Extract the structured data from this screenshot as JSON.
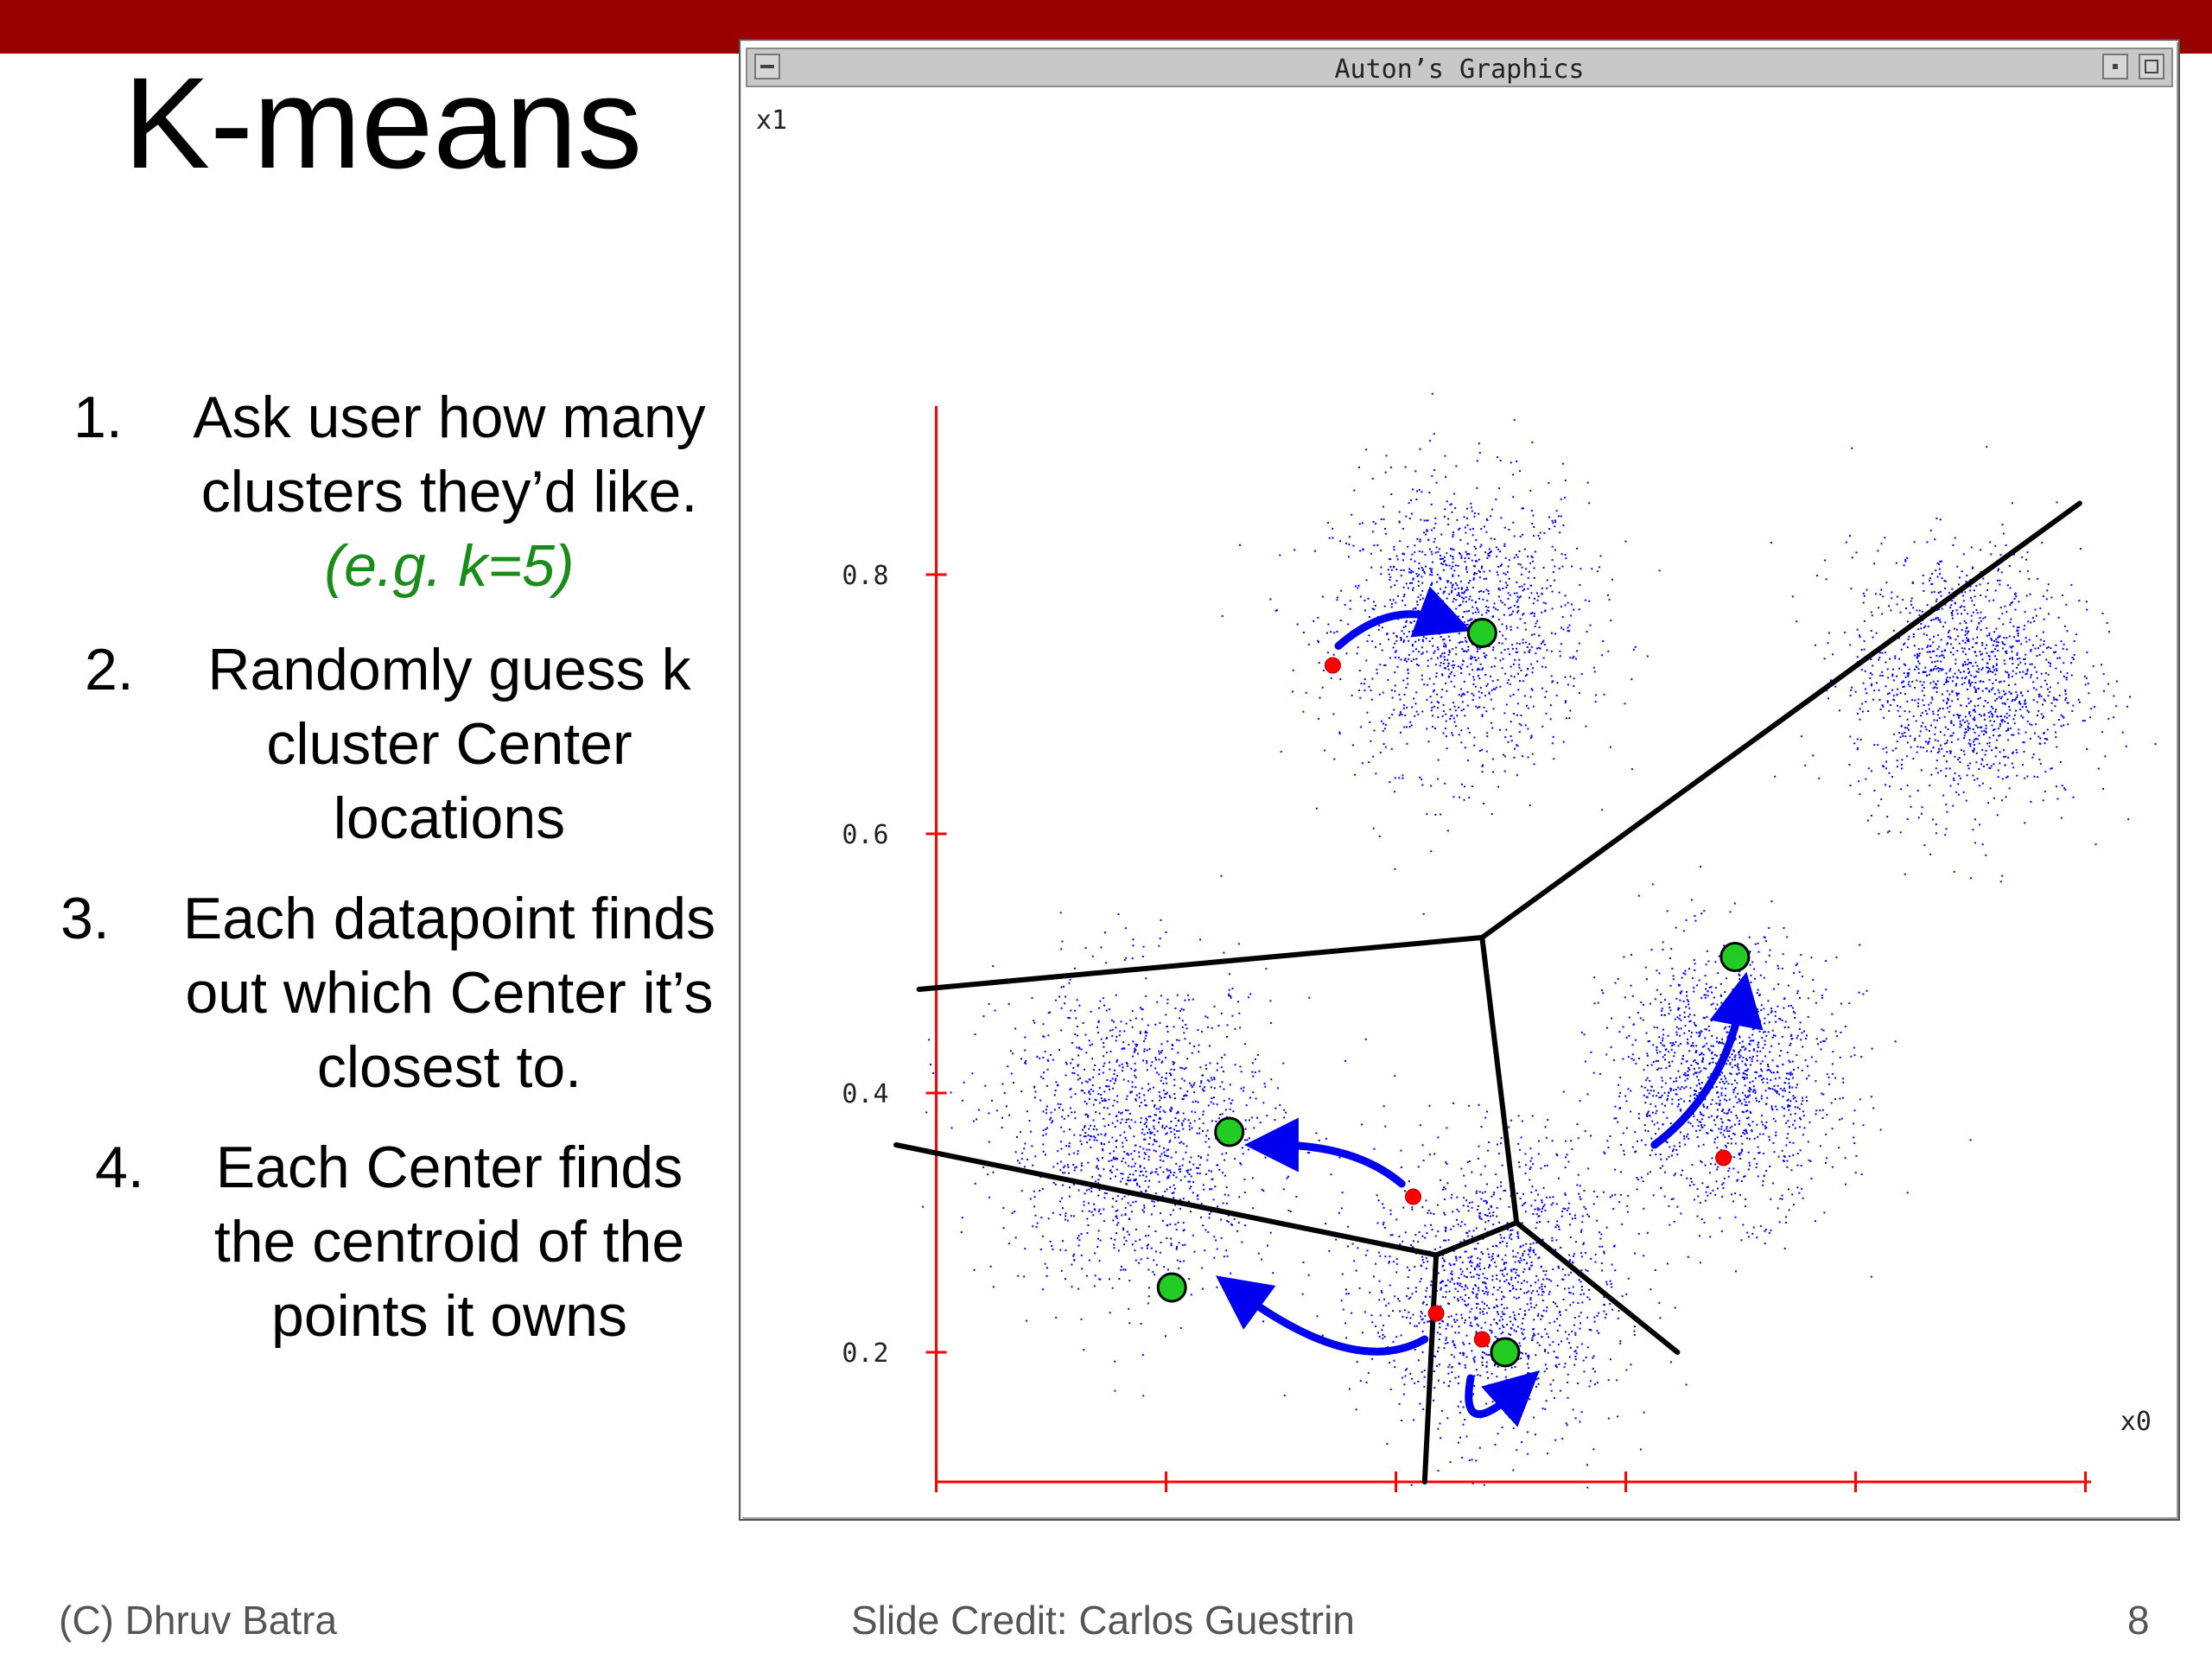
{
  "slide": {
    "title": "K-means",
    "steps": [
      {
        "num": "1.",
        "lines": [
          "Ask user how many",
          "clusters they’d like."
        ],
        "note": "(e.g. k=5)"
      },
      {
        "num": "2.",
        "lines": [
          "Randomly guess k",
          "cluster Center",
          "locations"
        ]
      },
      {
        "num": "3.",
        "lines": [
          "Each datapoint finds",
          "out which Center it’s",
          "closest to."
        ]
      },
      {
        "num": "4.",
        "lines": [
          "Each Center finds",
          "the centroid of the",
          "points it owns"
        ]
      }
    ],
    "footer": {
      "left": "(C) Dhruv Batra",
      "center": "Slide Credit: Carlos Guestrin",
      "page": "8"
    }
  },
  "window": {
    "title": "Auton’s Graphics",
    "colors": {
      "titlebar": "#c8c8c8",
      "axis": "#ff0000",
      "points": "#0000ff",
      "old_center": "#ff0000",
      "new_center": "#22cc22",
      "boundary": "#000000",
      "arrow": "#0000ee"
    }
  },
  "chart_data": {
    "type": "scatter",
    "xlabel": "x0",
    "ylabel": "x1",
    "x_ticks": [
      "0",
      "0.2",
      "0.4",
      "0.6",
      "0.8",
      "1"
    ],
    "y_ticks": [
      "0.2",
      "0.4",
      "0.6",
      "0.8"
    ],
    "xlim": [
      0,
      1.05
    ],
    "ylim": [
      0.1,
      0.95
    ],
    "grid": false,
    "clusters": [
      {
        "center": [
          0.49,
          0.76
        ],
        "spread": 0.055
      },
      {
        "center": [
          0.93,
          0.72
        ],
        "spread": 0.05
      },
      {
        "center": [
          0.72,
          0.41
        ],
        "spread": 0.05
      },
      {
        "center": [
          0.21,
          0.37
        ],
        "spread": 0.06
      },
      {
        "center": [
          0.52,
          0.25
        ],
        "spread": 0.055
      }
    ],
    "old_centers": [
      [
        0.38,
        0.73
      ],
      [
        0.72,
        0.35
      ],
      [
        0.45,
        0.32
      ],
      [
        0.47,
        0.23
      ],
      [
        0.51,
        0.21
      ]
    ],
    "new_centers": [
      [
        0.51,
        0.755
      ],
      [
        0.73,
        0.505
      ],
      [
        0.29,
        0.37
      ],
      [
        0.24,
        0.25
      ],
      [
        0.53,
        0.2
      ]
    ],
    "voronoi_edges": [
      [
        [
          0.02,
          0.48
        ],
        [
          0.51,
          0.52
        ]
      ],
      [
        [
          0.51,
          0.52
        ],
        [
          1.03,
          0.855
        ]
      ],
      [
        [
          0.51,
          0.52
        ],
        [
          0.54,
          0.3
        ]
      ],
      [
        [
          0.54,
          0.3
        ],
        [
          0.47,
          0.275
        ]
      ],
      [
        [
          0.47,
          0.275
        ],
        [
          0.0,
          0.36
        ]
      ],
      [
        [
          0.47,
          0.275
        ],
        [
          0.46,
          0.1
        ]
      ],
      [
        [
          0.54,
          0.3
        ],
        [
          0.68,
          0.2
        ]
      ]
    ]
  }
}
